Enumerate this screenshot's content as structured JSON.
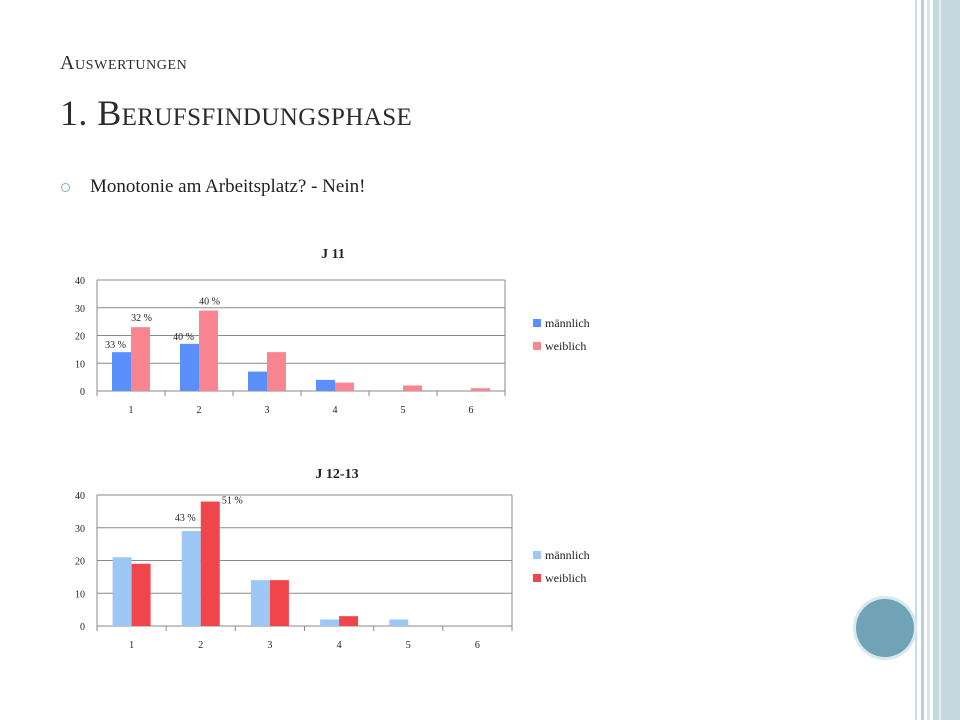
{
  "slide": {
    "subtitle": "Auswertungen",
    "title": "1. Berufsfindungsphase",
    "bullet": "Monotonie am Arbeitsplatz? - Nein!"
  },
  "colors": {
    "accent_circle": "#6fa3b5",
    "j11_maennlich": "#5b8ff9",
    "j11_weiblich": "#f88590",
    "j1213_maennlich": "#9dc8f5",
    "j1213_weiblich": "#f0454b"
  },
  "chart_data": [
    {
      "type": "bar",
      "title": "J 11",
      "categories": [
        "1",
        "2",
        "3",
        "4",
        "5",
        "6"
      ],
      "ylim": [
        0,
        40
      ],
      "yticks": [
        0,
        10,
        20,
        30,
        40
      ],
      "grid": true,
      "legend": "right",
      "series": [
        {
          "name": "männlich",
          "values": [
            14,
            17,
            7,
            4,
            0,
            0
          ],
          "labels": [
            "33 %",
            "40 %",
            "",
            "",
            "",
            ""
          ]
        },
        {
          "name": "weiblich",
          "values": [
            23,
            29,
            14,
            3,
            2,
            1
          ],
          "labels": [
            "32 %",
            "40 %",
            "",
            "",
            "",
            ""
          ]
        }
      ]
    },
    {
      "type": "bar",
      "title": "J 12-13",
      "categories": [
        "1",
        "2",
        "3",
        "4",
        "5",
        "6"
      ],
      "ylim": [
        0,
        40
      ],
      "yticks": [
        0,
        10,
        20,
        30,
        40
      ],
      "grid": true,
      "legend": "right",
      "series": [
        {
          "name": "männlich",
          "values": [
            21,
            29,
            14,
            2,
            2,
            0
          ],
          "labels": [
            "",
            "43 %",
            "",
            "",
            "",
            ""
          ]
        },
        {
          "name": "weiblich",
          "values": [
            19,
            38,
            14,
            3,
            0,
            0
          ],
          "labels": [
            "",
            "51 %",
            "",
            "",
            "",
            ""
          ]
        }
      ]
    }
  ]
}
